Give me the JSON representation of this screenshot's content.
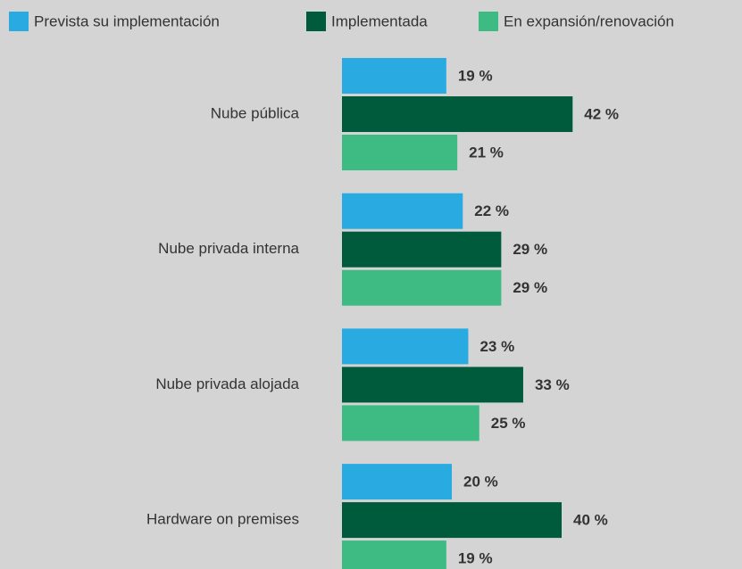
{
  "chart_data": {
    "type": "bar",
    "orientation": "horizontal",
    "categories": [
      "Nube pública",
      "Nube privada interna",
      "Nube privada alojada",
      "Hardware on premises"
    ],
    "series": [
      {
        "name": "Prevista su implementación",
        "color": "#29abe2",
        "values": [
          19,
          22,
          23,
          20
        ],
        "value_labels": [
          "19 %",
          "22 %",
          "23 %",
          "20 %"
        ]
      },
      {
        "name": "Implementada",
        "color": "#005a3c",
        "values": [
          42,
          29,
          33,
          40
        ],
        "value_labels": [
          "42 %",
          "29 %",
          "33 %",
          "40 %"
        ]
      },
      {
        "name": "En expansión/renovación",
        "color": "#3dbb82",
        "values": [
          21,
          29,
          25,
          19
        ],
        "value_labels": [
          "21 %",
          "29 %",
          "25 %",
          "19 %"
        ]
      }
    ],
    "legend": "top-left"
  }
}
